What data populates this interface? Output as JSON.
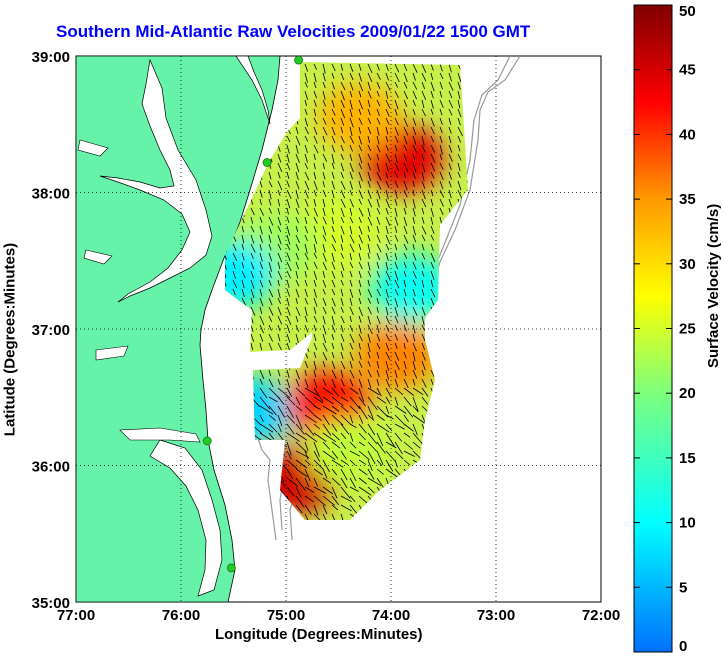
{
  "title": "Southern Mid-Atlantic Raw Velocities 2009/01/22 1500 GMT",
  "axes": {
    "xlabel": "Longitude (Degrees:Minutes)",
    "ylabel": "Latitude (Degrees:Minutes)",
    "x_ticks": [
      "77:00",
      "76:00",
      "75:00",
      "74:00",
      "73:00",
      "72:00"
    ],
    "y_ticks": [
      "39:00",
      "38:00",
      "37:00",
      "36:00",
      "35:00"
    ],
    "xlim": [
      -77,
      -72
    ],
    "ylim": [
      35,
      39
    ],
    "grid": "dotted"
  },
  "colorbar": {
    "label": "Surface Velocity (cm/s)",
    "ticks": [
      "50",
      "45",
      "40",
      "35",
      "30",
      "25",
      "20",
      "15",
      "10",
      "5",
      "0"
    ],
    "range": [
      0,
      50
    ],
    "colormap": "jet"
  },
  "colors": {
    "land": "#66f2a8",
    "water": "#ffffff",
    "title": "#0000ff",
    "station": "#22cc22",
    "bathymetry": "#999999",
    "vectors": "#000000"
  },
  "stations": [
    {
      "name": "station-1",
      "lon": -74.88,
      "lat": 38.97
    },
    {
      "name": "station-2",
      "lon": -75.18,
      "lat": 38.22
    },
    {
      "name": "station-3",
      "lon": -75.75,
      "lat": 36.18
    },
    {
      "name": "station-4",
      "lon": -75.52,
      "lat": 35.25
    }
  ],
  "velocity_regions": [
    {
      "name": "region-north-high",
      "lon": -73.9,
      "lat": 38.25,
      "speed": 44
    },
    {
      "name": "region-north-mid",
      "lon": -74.3,
      "lat": 38.55,
      "speed": 33
    },
    {
      "name": "region-central",
      "lon": -74.5,
      "lat": 37.7,
      "speed": 25
    },
    {
      "name": "region-west",
      "lon": -75.1,
      "lat": 37.6,
      "speed": 22
    },
    {
      "name": "region-west-low",
      "lon": -75.5,
      "lat": 37.4,
      "speed": 9
    },
    {
      "name": "region-east-low",
      "lon": -73.8,
      "lat": 37.3,
      "speed": 11
    },
    {
      "name": "region-south-west-low",
      "lon": -75.3,
      "lat": 36.4,
      "speed": 7
    },
    {
      "name": "region-south-high",
      "lon": -74.6,
      "lat": 36.45,
      "speed": 42
    },
    {
      "name": "region-southeast",
      "lon": -73.95,
      "lat": 36.8,
      "speed": 36
    },
    {
      "name": "region-south-tip",
      "lon": -74.9,
      "lat": 35.9,
      "speed": 45
    },
    {
      "name": "region-south-mid",
      "lon": -74.4,
      "lat": 36.1,
      "speed": 24
    }
  ]
}
